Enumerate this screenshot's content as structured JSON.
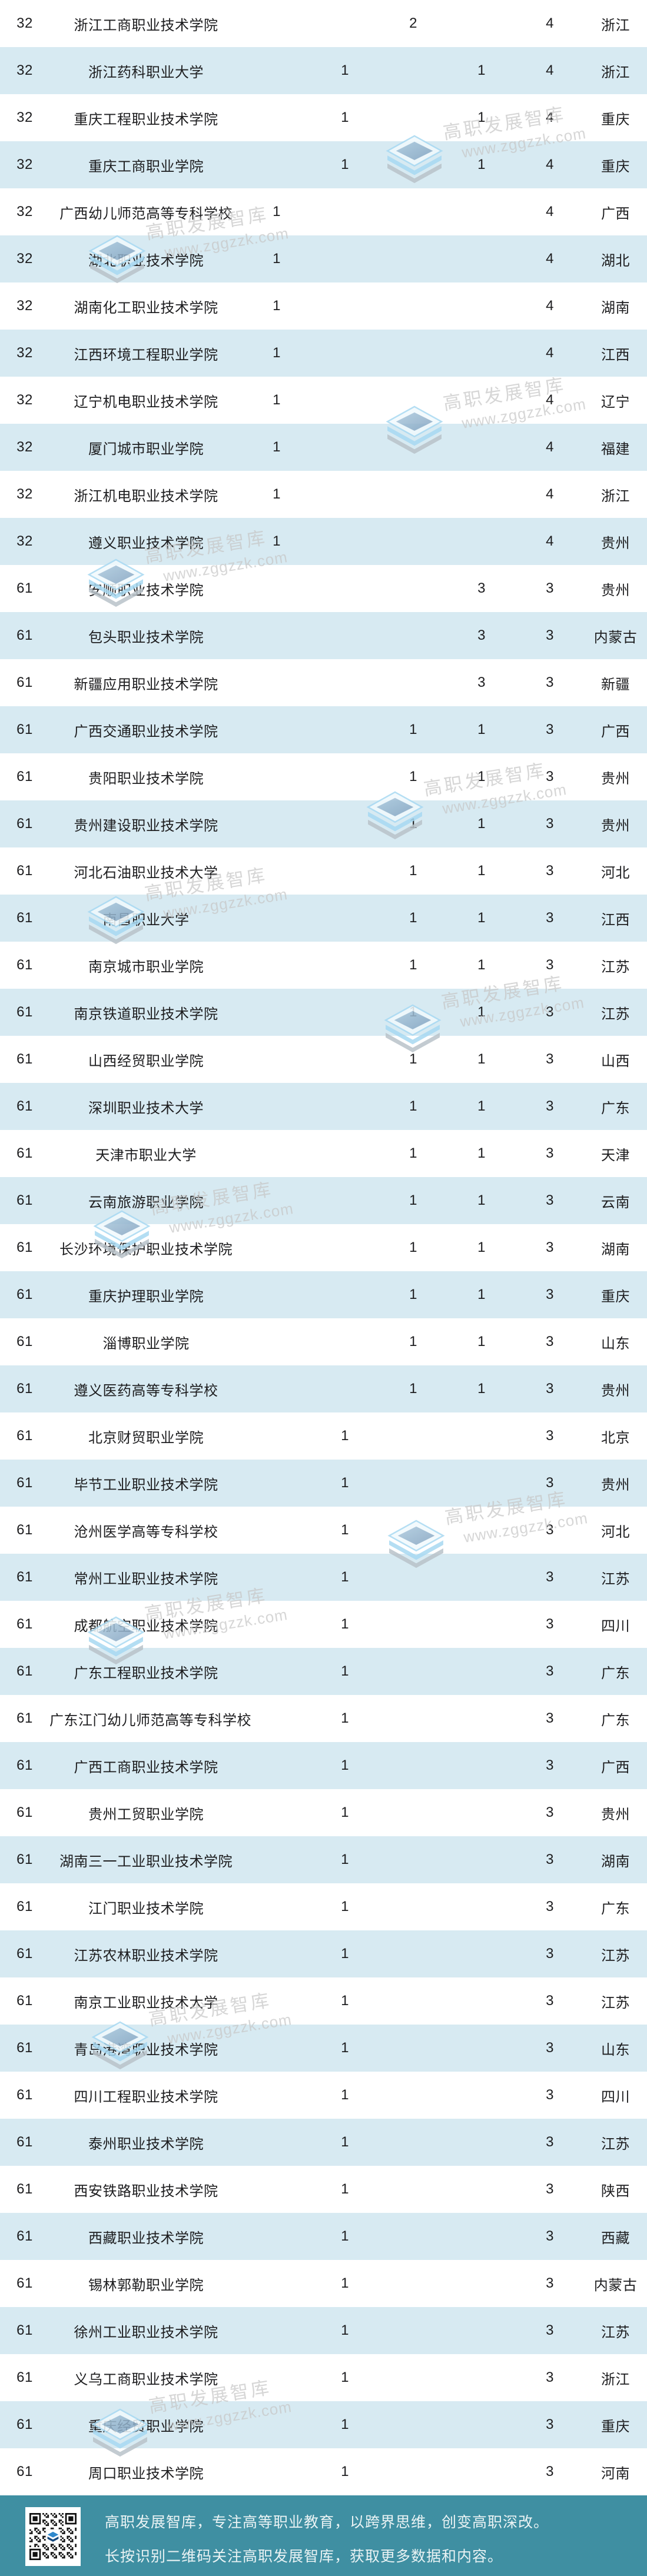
{
  "table": {
    "rows": [
      {
        "rank": "32",
        "name": "浙江工商职业技术学院",
        "c1": "",
        "c2": "",
        "c3": "2",
        "c4": "",
        "total": "4",
        "province": "浙江"
      },
      {
        "rank": "32",
        "name": "浙江药科职业大学",
        "c1": "",
        "c2": "1",
        "c3": "",
        "c4": "1",
        "total": "4",
        "province": "浙江"
      },
      {
        "rank": "32",
        "name": "重庆工程职业技术学院",
        "c1": "",
        "c2": "1",
        "c3": "",
        "c4": "1",
        "total": "4",
        "province": "重庆"
      },
      {
        "rank": "32",
        "name": "重庆工商职业学院",
        "c1": "",
        "c2": "1",
        "c3": "",
        "c4": "1",
        "total": "4",
        "province": "重庆"
      },
      {
        "rank": "32",
        "name": "广西幼儿师范高等专科学校",
        "c1": "1",
        "c2": "",
        "c3": "",
        "c4": "",
        "total": "4",
        "province": "广西"
      },
      {
        "rank": "32",
        "name": "湖北职业技术学院",
        "c1": "1",
        "c2": "",
        "c3": "",
        "c4": "",
        "total": "4",
        "province": "湖北"
      },
      {
        "rank": "32",
        "name": "湖南化工职业技术学院",
        "c1": "1",
        "c2": "",
        "c3": "",
        "c4": "",
        "total": "4",
        "province": "湖南"
      },
      {
        "rank": "32",
        "name": "江西环境工程职业学院",
        "c1": "1",
        "c2": "",
        "c3": "",
        "c4": "",
        "total": "4",
        "province": "江西"
      },
      {
        "rank": "32",
        "name": "辽宁机电职业技术学院",
        "c1": "1",
        "c2": "",
        "c3": "",
        "c4": "",
        "total": "4",
        "province": "辽宁"
      },
      {
        "rank": "32",
        "name": "厦门城市职业学院",
        "c1": "1",
        "c2": "",
        "c3": "",
        "c4": "",
        "total": "4",
        "province": "福建"
      },
      {
        "rank": "32",
        "name": "浙江机电职业技术学院",
        "c1": "1",
        "c2": "",
        "c3": "",
        "c4": "",
        "total": "4",
        "province": "浙江"
      },
      {
        "rank": "32",
        "name": "遵义职业技术学院",
        "c1": "1",
        "c2": "",
        "c3": "",
        "c4": "",
        "total": "4",
        "province": "贵州"
      },
      {
        "rank": "61",
        "name": "安顺职业技术学院",
        "c1": "",
        "c2": "",
        "c3": "",
        "c4": "3",
        "total": "3",
        "province": "贵州"
      },
      {
        "rank": "61",
        "name": "包头职业技术学院",
        "c1": "",
        "c2": "",
        "c3": "",
        "c4": "3",
        "total": "3",
        "province": "内蒙古"
      },
      {
        "rank": "61",
        "name": "新疆应用职业技术学院",
        "c1": "",
        "c2": "",
        "c3": "",
        "c4": "3",
        "total": "3",
        "province": "新疆"
      },
      {
        "rank": "61",
        "name": "广西交通职业技术学院",
        "c1": "",
        "c2": "",
        "c3": "1",
        "c4": "1",
        "total": "3",
        "province": "广西"
      },
      {
        "rank": "61",
        "name": "贵阳职业技术学院",
        "c1": "",
        "c2": "",
        "c3": "1",
        "c4": "1",
        "total": "3",
        "province": "贵州"
      },
      {
        "rank": "61",
        "name": "贵州建设职业技术学院",
        "c1": "",
        "c2": "",
        "c3": "1",
        "c4": "1",
        "total": "3",
        "province": "贵州"
      },
      {
        "rank": "61",
        "name": "河北石油职业技术大学",
        "c1": "",
        "c2": "",
        "c3": "1",
        "c4": "1",
        "total": "3",
        "province": "河北"
      },
      {
        "rank": "61",
        "name": "南昌职业大学",
        "c1": "",
        "c2": "",
        "c3": "1",
        "c4": "1",
        "total": "3",
        "province": "江西"
      },
      {
        "rank": "61",
        "name": "南京城市职业学院",
        "c1": "",
        "c2": "",
        "c3": "1",
        "c4": "1",
        "total": "3",
        "province": "江苏"
      },
      {
        "rank": "61",
        "name": "南京铁道职业技术学院",
        "c1": "",
        "c2": "",
        "c3": "1",
        "c4": "1",
        "total": "3",
        "province": "江苏"
      },
      {
        "rank": "61",
        "name": "山西经贸职业学院",
        "c1": "",
        "c2": "",
        "c3": "1",
        "c4": "1",
        "total": "3",
        "province": "山西"
      },
      {
        "rank": "61",
        "name": "深圳职业技术大学",
        "c1": "",
        "c2": "",
        "c3": "1",
        "c4": "1",
        "total": "3",
        "province": "广东"
      },
      {
        "rank": "61",
        "name": "天津市职业大学",
        "c1": "",
        "c2": "",
        "c3": "1",
        "c4": "1",
        "total": "3",
        "province": "天津"
      },
      {
        "rank": "61",
        "name": "云南旅游职业学院",
        "c1": "",
        "c2": "",
        "c3": "1",
        "c4": "1",
        "total": "3",
        "province": "云南"
      },
      {
        "rank": "61",
        "name": "长沙环境保护职业技术学院",
        "c1": "",
        "c2": "",
        "c3": "1",
        "c4": "1",
        "total": "3",
        "province": "湖南"
      },
      {
        "rank": "61",
        "name": "重庆护理职业学院",
        "c1": "",
        "c2": "",
        "c3": "1",
        "c4": "1",
        "total": "3",
        "province": "重庆"
      },
      {
        "rank": "61",
        "name": "淄博职业学院",
        "c1": "",
        "c2": "",
        "c3": "1",
        "c4": "1",
        "total": "3",
        "province": "山东"
      },
      {
        "rank": "61",
        "name": "遵义医药高等专科学校",
        "c1": "",
        "c2": "",
        "c3": "1",
        "c4": "1",
        "total": "3",
        "province": "贵州"
      },
      {
        "rank": "61",
        "name": "北京财贸职业学院",
        "c1": "",
        "c2": "1",
        "c3": "",
        "c4": "",
        "total": "3",
        "province": "北京"
      },
      {
        "rank": "61",
        "name": "毕节工业职业技术学院",
        "c1": "",
        "c2": "1",
        "c3": "",
        "c4": "",
        "total": "3",
        "province": "贵州"
      },
      {
        "rank": "61",
        "name": "沧州医学高等专科学校",
        "c1": "",
        "c2": "1",
        "c3": "",
        "c4": "",
        "total": "3",
        "province": "河北"
      },
      {
        "rank": "61",
        "name": "常州工业职业技术学院",
        "c1": "",
        "c2": "1",
        "c3": "",
        "c4": "",
        "total": "3",
        "province": "江苏"
      },
      {
        "rank": "61",
        "name": "成都航空职业技术学院",
        "c1": "",
        "c2": "1",
        "c3": "",
        "c4": "",
        "total": "3",
        "province": "四川"
      },
      {
        "rank": "61",
        "name": "广东工程职业技术学院",
        "c1": "",
        "c2": "1",
        "c3": "",
        "c4": "",
        "total": "3",
        "province": "广东"
      },
      {
        "rank": "61",
        "name": "广东江门幼儿师范高等专科学校",
        "c1": "",
        "c2": "1",
        "c3": "",
        "c4": "",
        "total": "3",
        "province": "广东"
      },
      {
        "rank": "61",
        "name": "广西工商职业技术学院",
        "c1": "",
        "c2": "1",
        "c3": "",
        "c4": "",
        "total": "3",
        "province": "广西"
      },
      {
        "rank": "61",
        "name": "贵州工贸职业学院",
        "c1": "",
        "c2": "1",
        "c3": "",
        "c4": "",
        "total": "3",
        "province": "贵州"
      },
      {
        "rank": "61",
        "name": "湖南三一工业职业技术学院",
        "c1": "",
        "c2": "1",
        "c3": "",
        "c4": "",
        "total": "3",
        "province": "湖南"
      },
      {
        "rank": "61",
        "name": "江门职业技术学院",
        "c1": "",
        "c2": "1",
        "c3": "",
        "c4": "",
        "total": "3",
        "province": "广东"
      },
      {
        "rank": "61",
        "name": "江苏农林职业技术学院",
        "c1": "",
        "c2": "1",
        "c3": "",
        "c4": "",
        "total": "3",
        "province": "江苏"
      },
      {
        "rank": "61",
        "name": "南京工业职业技术大学",
        "c1": "",
        "c2": "1",
        "c3": "",
        "c4": "",
        "total": "3",
        "province": "江苏"
      },
      {
        "rank": "61",
        "name": "青岛港湾职业技术学院",
        "c1": "",
        "c2": "1",
        "c3": "",
        "c4": "",
        "total": "3",
        "province": "山东"
      },
      {
        "rank": "61",
        "name": "四川工程职业技术学院",
        "c1": "",
        "c2": "1",
        "c3": "",
        "c4": "",
        "total": "3",
        "province": "四川"
      },
      {
        "rank": "61",
        "name": "泰州职业技术学院",
        "c1": "",
        "c2": "1",
        "c3": "",
        "c4": "",
        "total": "3",
        "province": "江苏"
      },
      {
        "rank": "61",
        "name": "西安铁路职业技术学院",
        "c1": "",
        "c2": "1",
        "c3": "",
        "c4": "",
        "total": "3",
        "province": "陕西"
      },
      {
        "rank": "61",
        "name": "西藏职业技术学院",
        "c1": "",
        "c2": "1",
        "c3": "",
        "c4": "",
        "total": "3",
        "province": "西藏"
      },
      {
        "rank": "61",
        "name": "锡林郭勒职业学院",
        "c1": "",
        "c2": "1",
        "c3": "",
        "c4": "",
        "total": "3",
        "province": "内蒙古"
      },
      {
        "rank": "61",
        "name": "徐州工业职业技术学院",
        "c1": "",
        "c2": "1",
        "c3": "",
        "c4": "",
        "total": "3",
        "province": "江苏"
      },
      {
        "rank": "61",
        "name": "义乌工商职业技术学院",
        "c1": "",
        "c2": "1",
        "c3": "",
        "c4": "",
        "total": "3",
        "province": "浙江"
      },
      {
        "rank": "61",
        "name": "重庆经贸职业学院",
        "c1": "",
        "c2": "1",
        "c3": "",
        "c4": "",
        "total": "3",
        "province": "重庆"
      },
      {
        "rank": "61",
        "name": "周口职业技术学院",
        "c1": "",
        "c2": "1",
        "c3": "",
        "c4": "",
        "total": "3",
        "province": "河南"
      }
    ]
  },
  "watermark": {
    "brand": "高职发展智库",
    "url": "www.zggzzk.com"
  },
  "footer": {
    "line1": "高职发展智库，专注高等职业教育，以跨界思维，创变高职深改。",
    "line2": "长按识别二维码关注高职发展智库，获取更多数据和内容。"
  },
  "colors": {
    "row_alt": "#d7eaf2",
    "footer_bg": "#3f8fa2",
    "text": "#1d1d1f",
    "footer_text": "#eaf3f4",
    "watermark": "#c7c7c7"
  }
}
